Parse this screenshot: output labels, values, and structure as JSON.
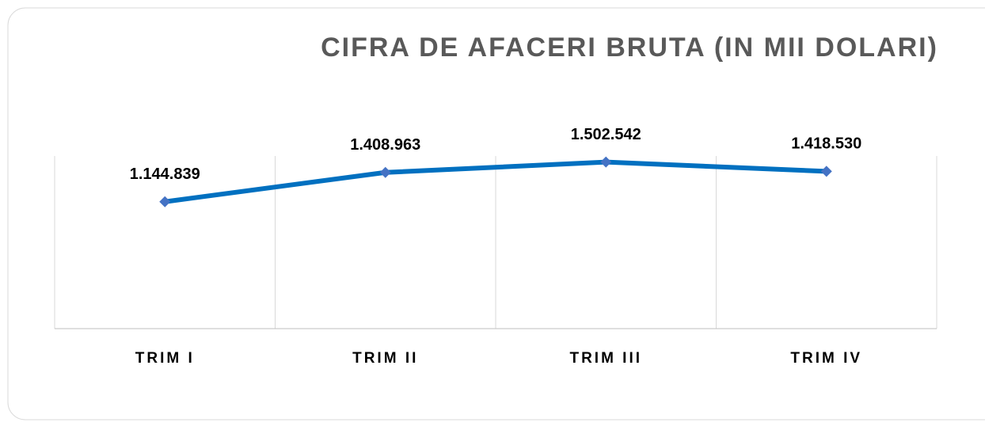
{
  "chart_data": {
    "type": "line",
    "title": "CIFRA DE AFACERI BRUTA (IN MII DOLARI)",
    "categories": [
      "TRIM I",
      "TRIM II",
      "TRIM III",
      "TRIM IV"
    ],
    "values": [
      1144839,
      1408963,
      1502542,
      1418530
    ],
    "value_labels": [
      "1.144.839",
      "1.408.963",
      "1.502.542",
      "1.418.530"
    ],
    "color": "#0070c0",
    "marker_color": "#4472c4",
    "ylim": [
      0,
      1600000
    ]
  }
}
